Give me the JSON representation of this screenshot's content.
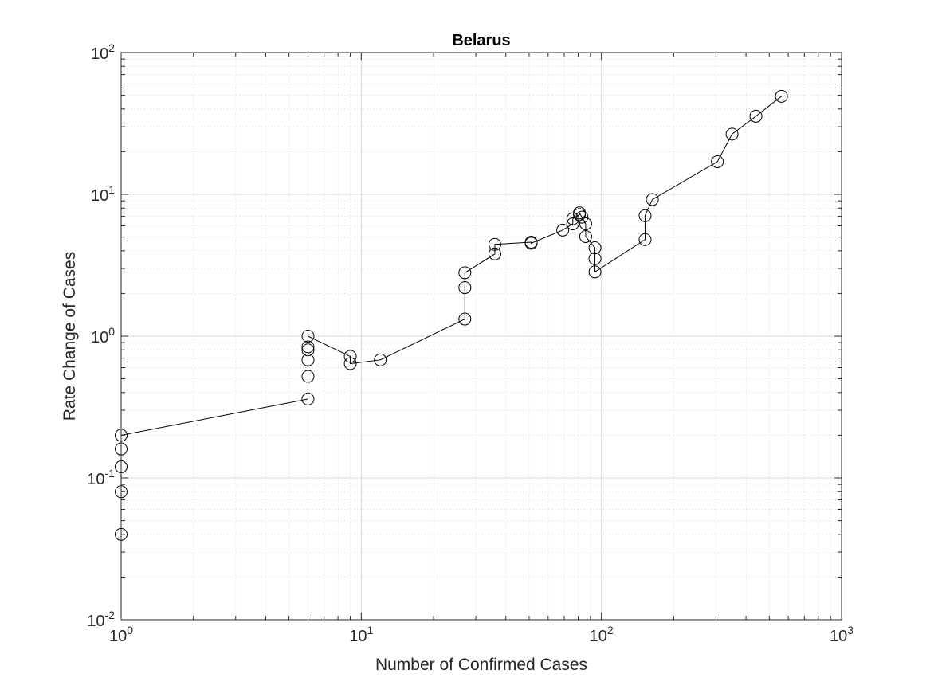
{
  "chart_data": {
    "type": "line",
    "title": "Belarus",
    "xlabel": "Number of Confirmed Cases",
    "ylabel": "Rate Change of Cases",
    "xscale": "log",
    "yscale": "log",
    "xlim": [
      1,
      1000
    ],
    "ylim": [
      0.01,
      100
    ],
    "grid": true,
    "minor_grid": true,
    "marker": "circle",
    "line_color": "#000000",
    "grid_color": "#d9d9d9",
    "x_ticks": [
      {
        "base": "10",
        "exp": "0"
      },
      {
        "base": "10",
        "exp": "1"
      },
      {
        "base": "10",
        "exp": "2"
      },
      {
        "base": "10",
        "exp": "3"
      }
    ],
    "y_ticks": [
      {
        "base": "10",
        "exp": "-2"
      },
      {
        "base": "10",
        "exp": "-1"
      },
      {
        "base": "10",
        "exp": "0"
      },
      {
        "base": "10",
        "exp": "1"
      },
      {
        "base": "10",
        "exp": "2"
      }
    ],
    "series": [
      {
        "points": [
          [
            1,
            0.04
          ],
          [
            1,
            0.08
          ],
          [
            1,
            0.12
          ],
          [
            1,
            0.16
          ],
          [
            1,
            0.2
          ],
          [
            6,
            0.36
          ],
          [
            6,
            0.52
          ],
          [
            6,
            0.68
          ],
          [
            6,
            0.8
          ],
          [
            6,
            0.84
          ],
          [
            6,
            1.0
          ],
          [
            9,
            0.72
          ],
          [
            9,
            0.64
          ],
          [
            12,
            0.68
          ],
          [
            27,
            1.32
          ],
          [
            27,
            2.2
          ],
          [
            27,
            2.8
          ],
          [
            36,
            3.8
          ],
          [
            36,
            4.44
          ],
          [
            51,
            4.6
          ],
          [
            51,
            4.52
          ],
          [
            69,
            5.6
          ],
          [
            76,
            6.2
          ],
          [
            76,
            6.72
          ],
          [
            81,
            7.2
          ],
          [
            81,
            7.4
          ],
          [
            83,
            6.9
          ],
          [
            86,
            6.2
          ],
          [
            86,
            5.04
          ],
          [
            94,
            4.2
          ],
          [
            94,
            3.52
          ],
          [
            94,
            2.84
          ],
          [
            152,
            4.8
          ],
          [
            152,
            7.08
          ],
          [
            163,
            9.2
          ],
          [
            304,
            17.0
          ],
          [
            350,
            26.6
          ],
          [
            440,
            35.6
          ],
          [
            562,
            49.2
          ]
        ]
      }
    ]
  }
}
